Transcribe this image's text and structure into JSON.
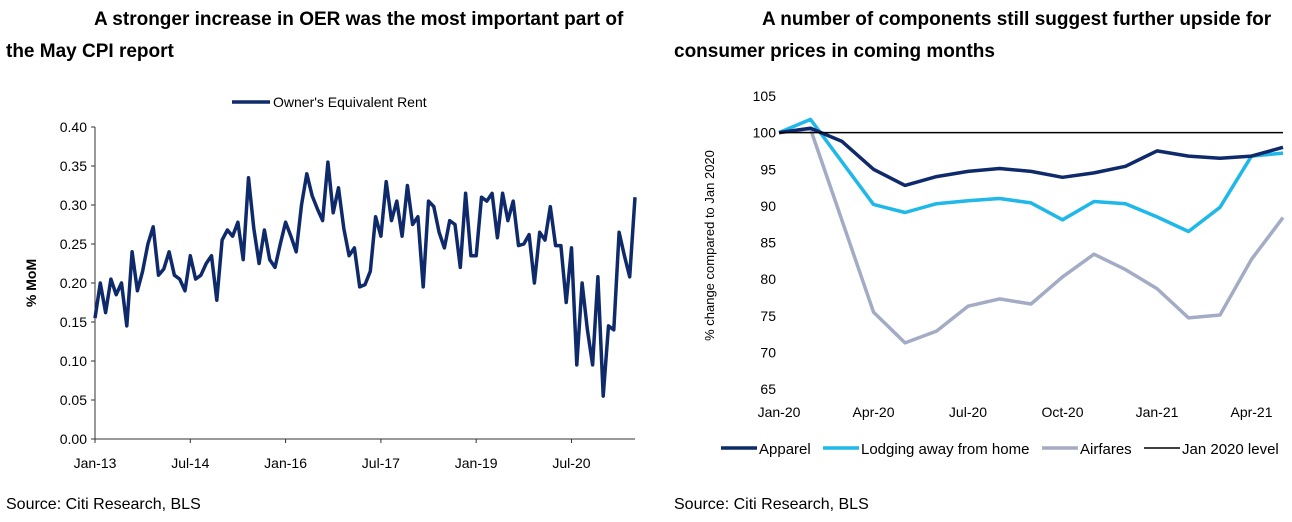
{
  "charts": [
    {
      "title_line1": "A stronger increase in OER was the most important part of",
      "title_line2": "the May CPI report",
      "source": "Source: Citi Research, BLS"
    },
    {
      "title_line1": "A number of components still suggest further upside for",
      "title_line2": "consumer prices in coming months",
      "source": "Source: Citi Research, BLS"
    }
  ],
  "colors": {
    "oer": "#0f2a6b",
    "apparel": "#0f2a6b",
    "lodging": "#1fb8e8",
    "airfares": "#a3acc4",
    "level": "#000000",
    "axis": "#333333"
  },
  "chart_data": [
    {
      "type": "line",
      "title": "A stronger increase in OER was the most important part of the May CPI report",
      "xlabel": "",
      "ylabel": "% MoM",
      "ylim": [
        0,
        0.4
      ],
      "yticks": [
        "0.00",
        "0.05",
        "0.10",
        "0.15",
        "0.20",
        "0.25",
        "0.30",
        "0.35",
        "0.40"
      ],
      "xticks": [
        "Jan-13",
        "Jul-14",
        "Jan-16",
        "Jul-17",
        "Jan-19",
        "Jul-20"
      ],
      "x_start": "Jan-13",
      "x_end": "May-21",
      "legend_position": "top-center",
      "series": [
        {
          "name": "Owner's Equivalent Rent",
          "values": [
            0.155,
            0.2,
            0.162,
            0.205,
            0.185,
            0.2,
            0.145,
            0.24,
            0.19,
            0.215,
            0.25,
            0.272,
            0.21,
            0.218,
            0.24,
            0.21,
            0.205,
            0.19,
            0.235,
            0.205,
            0.21,
            0.225,
            0.235,
            0.178,
            0.255,
            0.268,
            0.26,
            0.278,
            0.23,
            0.335,
            0.27,
            0.225,
            0.268,
            0.23,
            0.22,
            0.25,
            0.278,
            0.26,
            0.24,
            0.3,
            0.34,
            0.312,
            0.295,
            0.28,
            0.355,
            0.29,
            0.322,
            0.27,
            0.235,
            0.245,
            0.195,
            0.198,
            0.215,
            0.285,
            0.26,
            0.33,
            0.28,
            0.305,
            0.26,
            0.325,
            0.275,
            0.285,
            0.195,
            0.305,
            0.298,
            0.265,
            0.245,
            0.28,
            0.275,
            0.22,
            0.315,
            0.235,
            0.235,
            0.31,
            0.305,
            0.315,
            0.258,
            0.315,
            0.28,
            0.305,
            0.248,
            0.25,
            0.262,
            0.2,
            0.265,
            0.255,
            0.298,
            0.248,
            0.248,
            0.175,
            0.245,
            0.095,
            0.2,
            0.14,
            0.095,
            0.208,
            0.055,
            0.145,
            0.14,
            0.265,
            0.235,
            0.208,
            0.31
          ]
        }
      ]
    },
    {
      "type": "line",
      "title": "A number of components still suggest further upside for consumer prices in coming months",
      "xlabel": "",
      "ylabel": "% change compared to Jan 2020",
      "ylim": [
        65,
        105
      ],
      "yticks": [
        "65",
        "70",
        "75",
        "80",
        "85",
        "90",
        "95",
        "100",
        "105"
      ],
      "categories": [
        "Jan-20",
        "Feb-20",
        "Mar-20",
        "Apr-20",
        "May-20",
        "Jun-20",
        "Jul-20",
        "Aug-20",
        "Sep-20",
        "Oct-20",
        "Nov-20",
        "Dec-20",
        "Jan-21",
        "Feb-21",
        "Mar-21",
        "Apr-21",
        "May-21"
      ],
      "xticks": [
        "Jan-20",
        "Apr-20",
        "Jul-20",
        "Oct-20",
        "Jan-21",
        "Apr-21"
      ],
      "legend_position": "bottom",
      "series": [
        {
          "name": "Apparel",
          "values": [
            100,
            100.6,
            98.8,
            95,
            92.8,
            94,
            94.7,
            95.1,
            94.7,
            93.9,
            94.5,
            95.4,
            97.5,
            96.8,
            96.5,
            96.8,
            98
          ]
        },
        {
          "name": "Lodging away from home",
          "values": [
            100,
            101.8,
            96,
            90.2,
            89.1,
            90.3,
            90.7,
            91,
            90.4,
            88.1,
            90.6,
            90.3,
            88.5,
            86.5,
            89.8,
            96.8,
            97.2
          ]
        },
        {
          "name": "Airfares",
          "values": [
            100,
            100.5,
            88,
            75.5,
            71.3,
            72.9,
            76.3,
            77.3,
            76.6,
            80.3,
            83.4,
            81.3,
            78.7,
            74.7,
            75.1,
            82.7,
            88.4
          ]
        },
        {
          "name": "Jan 2020 level",
          "values": [
            100,
            100,
            100,
            100,
            100,
            100,
            100,
            100,
            100,
            100,
            100,
            100,
            100,
            100,
            100,
            100,
            100
          ]
        }
      ]
    }
  ]
}
